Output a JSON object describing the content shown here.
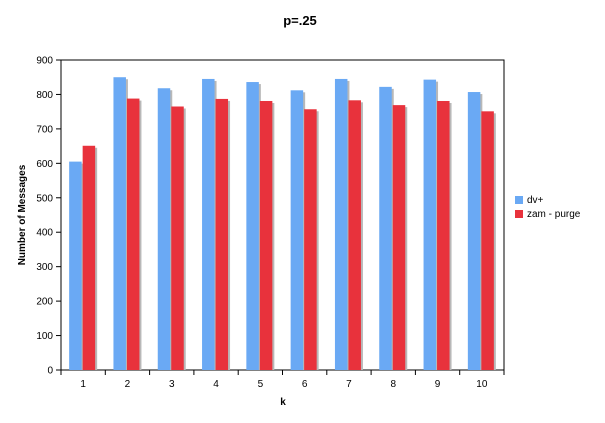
{
  "chart_data": {
    "type": "bar",
    "title": "p=.25",
    "xlabel": "k",
    "ylabel": "Number of Messages",
    "categories": [
      "1",
      "2",
      "3",
      "4",
      "5",
      "6",
      "7",
      "8",
      "9",
      "10"
    ],
    "ylim": [
      0,
      900
    ],
    "yticks": [
      "0",
      "100",
      "200",
      "300",
      "400",
      "500",
      "600",
      "700",
      "800",
      "900"
    ],
    "grid": false,
    "legend_position": "right",
    "series": [
      {
        "name": "dv+",
        "color": "#6aa9f4",
        "values": [
          605,
          850,
          818,
          845,
          836,
          812,
          845,
          822,
          843,
          807
        ]
      },
      {
        "name": "zam - purge",
        "color": "#e8323c",
        "values": [
          651,
          788,
          765,
          787,
          781,
          757,
          783,
          769,
          781,
          751
        ]
      }
    ]
  }
}
